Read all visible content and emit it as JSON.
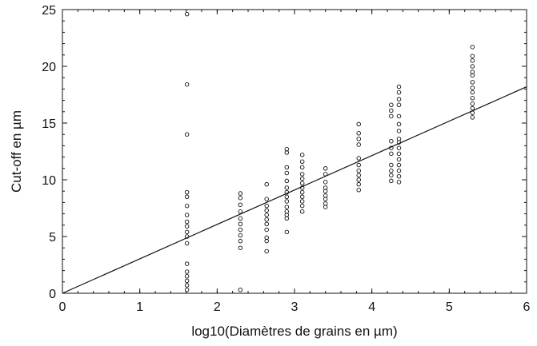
{
  "chart_data": {
    "type": "scatter",
    "title": "",
    "xlabel": "log10(Diamètres de grains en µm)",
    "ylabel": "Cut-off en µm",
    "xlim": [
      0,
      6
    ],
    "ylim": [
      0,
      25
    ],
    "x_ticks": [
      0,
      1,
      2,
      3,
      4,
      5,
      6
    ],
    "y_ticks": [
      0,
      5,
      10,
      15,
      20,
      25
    ],
    "x_minor_step": 0.2,
    "y_minor_step": 1,
    "grid": false,
    "legend": "none",
    "colors": {
      "axis": "#111111",
      "marker": "#111111",
      "line": "#111111"
    },
    "series": [
      {
        "kind": "points",
        "points": [
          {
            "x": 1.61,
            "y": 24.6
          },
          {
            "x": 1.61,
            "y": 18.4
          },
          {
            "x": 1.61,
            "y": 14.0
          },
          {
            "x": 1.61,
            "y": 8.9
          },
          {
            "x": 1.61,
            "y": 8.5
          },
          {
            "x": 1.61,
            "y": 7.7
          },
          {
            "x": 1.61,
            "y": 6.9
          },
          {
            "x": 1.61,
            "y": 6.3
          },
          {
            "x": 1.61,
            "y": 5.9
          },
          {
            "x": 1.61,
            "y": 5.4
          },
          {
            "x": 1.61,
            "y": 5.0
          },
          {
            "x": 1.61,
            "y": 4.4
          },
          {
            "x": 1.61,
            "y": 2.6
          },
          {
            "x": 1.61,
            "y": 1.9
          },
          {
            "x": 1.61,
            "y": 1.5
          },
          {
            "x": 1.61,
            "y": 1.1
          },
          {
            "x": 1.61,
            "y": 0.7
          },
          {
            "x": 1.61,
            "y": 0.3
          },
          {
            "x": 2.3,
            "y": 8.8
          },
          {
            "x": 2.3,
            "y": 8.4
          },
          {
            "x": 2.3,
            "y": 7.8
          },
          {
            "x": 2.3,
            "y": 7.2
          },
          {
            "x": 2.3,
            "y": 6.6
          },
          {
            "x": 2.3,
            "y": 6.1
          },
          {
            "x": 2.3,
            "y": 5.6
          },
          {
            "x": 2.3,
            "y": 5.1
          },
          {
            "x": 2.3,
            "y": 4.6
          },
          {
            "x": 2.3,
            "y": 4.0
          },
          {
            "x": 2.3,
            "y": 0.3
          },
          {
            "x": 2.64,
            "y": 9.6
          },
          {
            "x": 2.64,
            "y": 8.3
          },
          {
            "x": 2.64,
            "y": 7.7
          },
          {
            "x": 2.64,
            "y": 7.3
          },
          {
            "x": 2.64,
            "y": 6.9
          },
          {
            "x": 2.64,
            "y": 6.5
          },
          {
            "x": 2.64,
            "y": 6.1
          },
          {
            "x": 2.64,
            "y": 5.6
          },
          {
            "x": 2.64,
            "y": 4.9
          },
          {
            "x": 2.64,
            "y": 4.6
          },
          {
            "x": 2.64,
            "y": 3.7
          },
          {
            "x": 2.9,
            "y": 12.7
          },
          {
            "x": 2.9,
            "y": 12.4
          },
          {
            "x": 2.9,
            "y": 11.1
          },
          {
            "x": 2.9,
            "y": 10.6
          },
          {
            "x": 2.9,
            "y": 9.9
          },
          {
            "x": 2.9,
            "y": 9.3
          },
          {
            "x": 2.9,
            "y": 8.9
          },
          {
            "x": 2.9,
            "y": 8.5
          },
          {
            "x": 2.9,
            "y": 8.1
          },
          {
            "x": 2.9,
            "y": 7.6
          },
          {
            "x": 2.9,
            "y": 7.2
          },
          {
            "x": 2.9,
            "y": 6.9
          },
          {
            "x": 2.9,
            "y": 6.6
          },
          {
            "x": 2.9,
            "y": 5.4
          },
          {
            "x": 3.1,
            "y": 12.2
          },
          {
            "x": 3.1,
            "y": 11.6
          },
          {
            "x": 3.1,
            "y": 11.1
          },
          {
            "x": 3.1,
            "y": 10.5
          },
          {
            "x": 3.1,
            "y": 10.1
          },
          {
            "x": 3.1,
            "y": 9.7
          },
          {
            "x": 3.1,
            "y": 9.3
          },
          {
            "x": 3.1,
            "y": 8.9
          },
          {
            "x": 3.1,
            "y": 8.5
          },
          {
            "x": 3.1,
            "y": 8.1
          },
          {
            "x": 3.1,
            "y": 7.7
          },
          {
            "x": 3.1,
            "y": 7.2
          },
          {
            "x": 3.4,
            "y": 11.0
          },
          {
            "x": 3.4,
            "y": 10.5
          },
          {
            "x": 3.4,
            "y": 9.8
          },
          {
            "x": 3.4,
            "y": 9.3
          },
          {
            "x": 3.4,
            "y": 9.0
          },
          {
            "x": 3.4,
            "y": 8.6
          },
          {
            "x": 3.4,
            "y": 8.3
          },
          {
            "x": 3.4,
            "y": 7.9
          },
          {
            "x": 3.4,
            "y": 7.6
          },
          {
            "x": 3.83,
            "y": 14.9
          },
          {
            "x": 3.83,
            "y": 14.1
          },
          {
            "x": 3.83,
            "y": 13.6
          },
          {
            "x": 3.83,
            "y": 13.1
          },
          {
            "x": 3.83,
            "y": 11.9
          },
          {
            "x": 3.83,
            "y": 11.3
          },
          {
            "x": 3.83,
            "y": 10.8
          },
          {
            "x": 3.83,
            "y": 10.4
          },
          {
            "x": 3.83,
            "y": 10.0
          },
          {
            "x": 3.83,
            "y": 9.6
          },
          {
            "x": 3.83,
            "y": 9.1
          },
          {
            "x": 4.25,
            "y": 16.6
          },
          {
            "x": 4.25,
            "y": 16.1
          },
          {
            "x": 4.25,
            "y": 15.6
          },
          {
            "x": 4.25,
            "y": 13.4
          },
          {
            "x": 4.25,
            "y": 12.8
          },
          {
            "x": 4.25,
            "y": 12.3
          },
          {
            "x": 4.25,
            "y": 11.3
          },
          {
            "x": 4.25,
            "y": 10.8
          },
          {
            "x": 4.25,
            "y": 10.4
          },
          {
            "x": 4.25,
            "y": 9.9
          },
          {
            "x": 4.35,
            "y": 18.2
          },
          {
            "x": 4.35,
            "y": 17.7
          },
          {
            "x": 4.35,
            "y": 17.1
          },
          {
            "x": 4.35,
            "y": 16.6
          },
          {
            "x": 4.35,
            "y": 15.6
          },
          {
            "x": 4.35,
            "y": 14.9
          },
          {
            "x": 4.35,
            "y": 14.3
          },
          {
            "x": 4.35,
            "y": 13.6
          },
          {
            "x": 4.35,
            "y": 13.3
          },
          {
            "x": 4.35,
            "y": 12.8
          },
          {
            "x": 4.35,
            "y": 12.3
          },
          {
            "x": 4.35,
            "y": 11.8
          },
          {
            "x": 4.35,
            "y": 11.3
          },
          {
            "x": 4.35,
            "y": 10.8
          },
          {
            "x": 4.35,
            "y": 10.3
          },
          {
            "x": 4.35,
            "y": 9.8
          },
          {
            "x": 5.3,
            "y": 21.7
          },
          {
            "x": 5.3,
            "y": 20.9
          },
          {
            "x": 5.3,
            "y": 20.5
          },
          {
            "x": 5.3,
            "y": 20.0
          },
          {
            "x": 5.3,
            "y": 19.5
          },
          {
            "x": 5.3,
            "y": 19.2
          },
          {
            "x": 5.3,
            "y": 18.6
          },
          {
            "x": 5.3,
            "y": 18.1
          },
          {
            "x": 5.3,
            "y": 17.7
          },
          {
            "x": 5.3,
            "y": 17.2
          },
          {
            "x": 5.3,
            "y": 16.7
          },
          {
            "x": 5.3,
            "y": 16.3
          },
          {
            "x": 5.3,
            "y": 15.9
          },
          {
            "x": 5.3,
            "y": 15.5
          }
        ]
      },
      {
        "kind": "fit_line",
        "points": [
          {
            "x": 0,
            "y": 0
          },
          {
            "x": 6,
            "y": 18.2
          }
        ]
      }
    ]
  }
}
